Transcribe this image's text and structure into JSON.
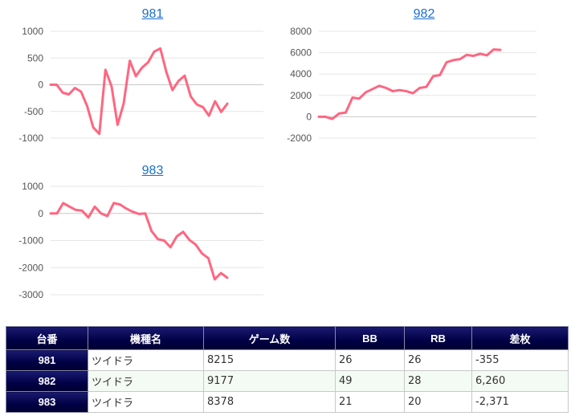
{
  "chart_data": [
    {
      "type": "line",
      "title": "981",
      "ylim": [
        -1000,
        1000
      ],
      "yticks": [
        "1000",
        "500",
        "0",
        "-500",
        "-1000"
      ],
      "color": "#ff6680",
      "series": [
        {
          "values": [
            0,
            0,
            -150,
            -180,
            -60,
            -130,
            -400,
            -800,
            -920,
            280,
            -30,
            -750,
            -350,
            450,
            160,
            320,
            420,
            620,
            680,
            240,
            -100,
            70,
            170,
            -220,
            -370,
            -420,
            -580,
            -310,
            -510,
            -355
          ]
        }
      ]
    },
    {
      "type": "line",
      "title": "982",
      "ylim": [
        -2000,
        8000
      ],
      "yticks": [
        "8000",
        "6000",
        "4000",
        "2000",
        "0",
        "-2000"
      ],
      "color": "#ff6680",
      "series": [
        {
          "values": [
            0,
            0,
            -200,
            300,
            400,
            1800,
            1700,
            2300,
            2600,
            2900,
            2700,
            2400,
            2500,
            2400,
            2200,
            2700,
            2800,
            3800,
            3900,
            5100,
            5300,
            5400,
            5800,
            5700,
            5900,
            5750,
            6300,
            6260
          ]
        }
      ]
    },
    {
      "type": "line",
      "title": "983",
      "ylim": [
        -3000,
        1000
      ],
      "yticks": [
        "1000",
        "0",
        "-1000",
        "-2000",
        "-3000"
      ],
      "color": "#ff6680",
      "series": [
        {
          "values": [
            0,
            0,
            380,
            250,
            130,
            100,
            -150,
            250,
            0,
            -100,
            380,
            330,
            180,
            60,
            -20,
            0,
            -650,
            -950,
            -1000,
            -1250,
            -850,
            -680,
            -980,
            -1150,
            -1480,
            -1650,
            -2430,
            -2200,
            -2371
          ]
        }
      ]
    }
  ],
  "table": {
    "headers": [
      "台番",
      "機種名",
      "ゲーム数",
      "BB",
      "RB",
      "差枚"
    ],
    "rows": [
      [
        "981",
        "ツイドラ",
        "8215",
        "26",
        "26",
        "-355"
      ],
      [
        "982",
        "ツイドラ",
        "9177",
        "49",
        "28",
        "6,260"
      ],
      [
        "983",
        "ツイドラ",
        "8378",
        "21",
        "20",
        "-2,371"
      ]
    ]
  }
}
